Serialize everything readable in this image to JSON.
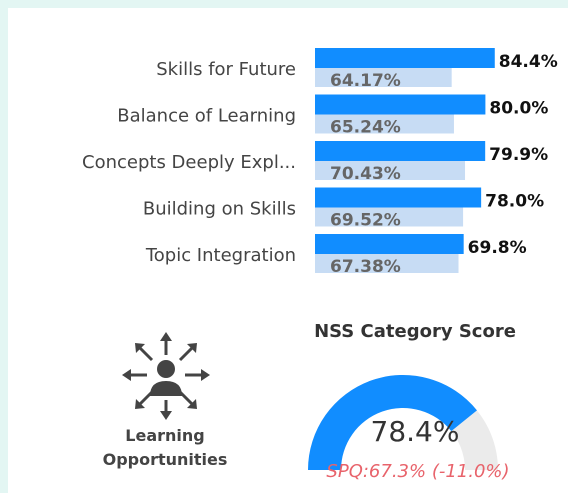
{
  "chart_data": [
    {
      "type": "bar",
      "orientation": "horizontal",
      "categories": [
        "Skills for Future",
        "Balance of Learning",
        "Concepts Deeply Expl...",
        "Building on Skills",
        "Topic Integration"
      ],
      "xlim": [
        0,
        100
      ],
      "series": [
        {
          "color": "#118dff",
          "values": [
            84.4,
            80.0,
            79.9,
            78.0,
            69.8
          ],
          "value_labels": [
            "84.4%",
            "80.0%",
            "79.9%",
            "78.0%",
            "69.8%"
          ]
        },
        {
          "color": "#c7dcf4",
          "values": [
            64.17,
            65.24,
            70.43,
            69.52,
            67.38
          ],
          "value_labels": [
            "64.17%",
            "65.24%",
            "70.43%",
            "69.52%",
            "67.38%"
          ]
        }
      ]
    },
    {
      "type": "gauge",
      "title": "NSS Category Score",
      "range": [
        0,
        100
      ],
      "value": 78.4,
      "value_label": "78.4%",
      "color": "#118dff",
      "track_color": "#ebebeb",
      "annotation": "SPQ:67.3% (-11.0%)"
    }
  ],
  "card": {
    "label": "Learning Opportunities"
  }
}
